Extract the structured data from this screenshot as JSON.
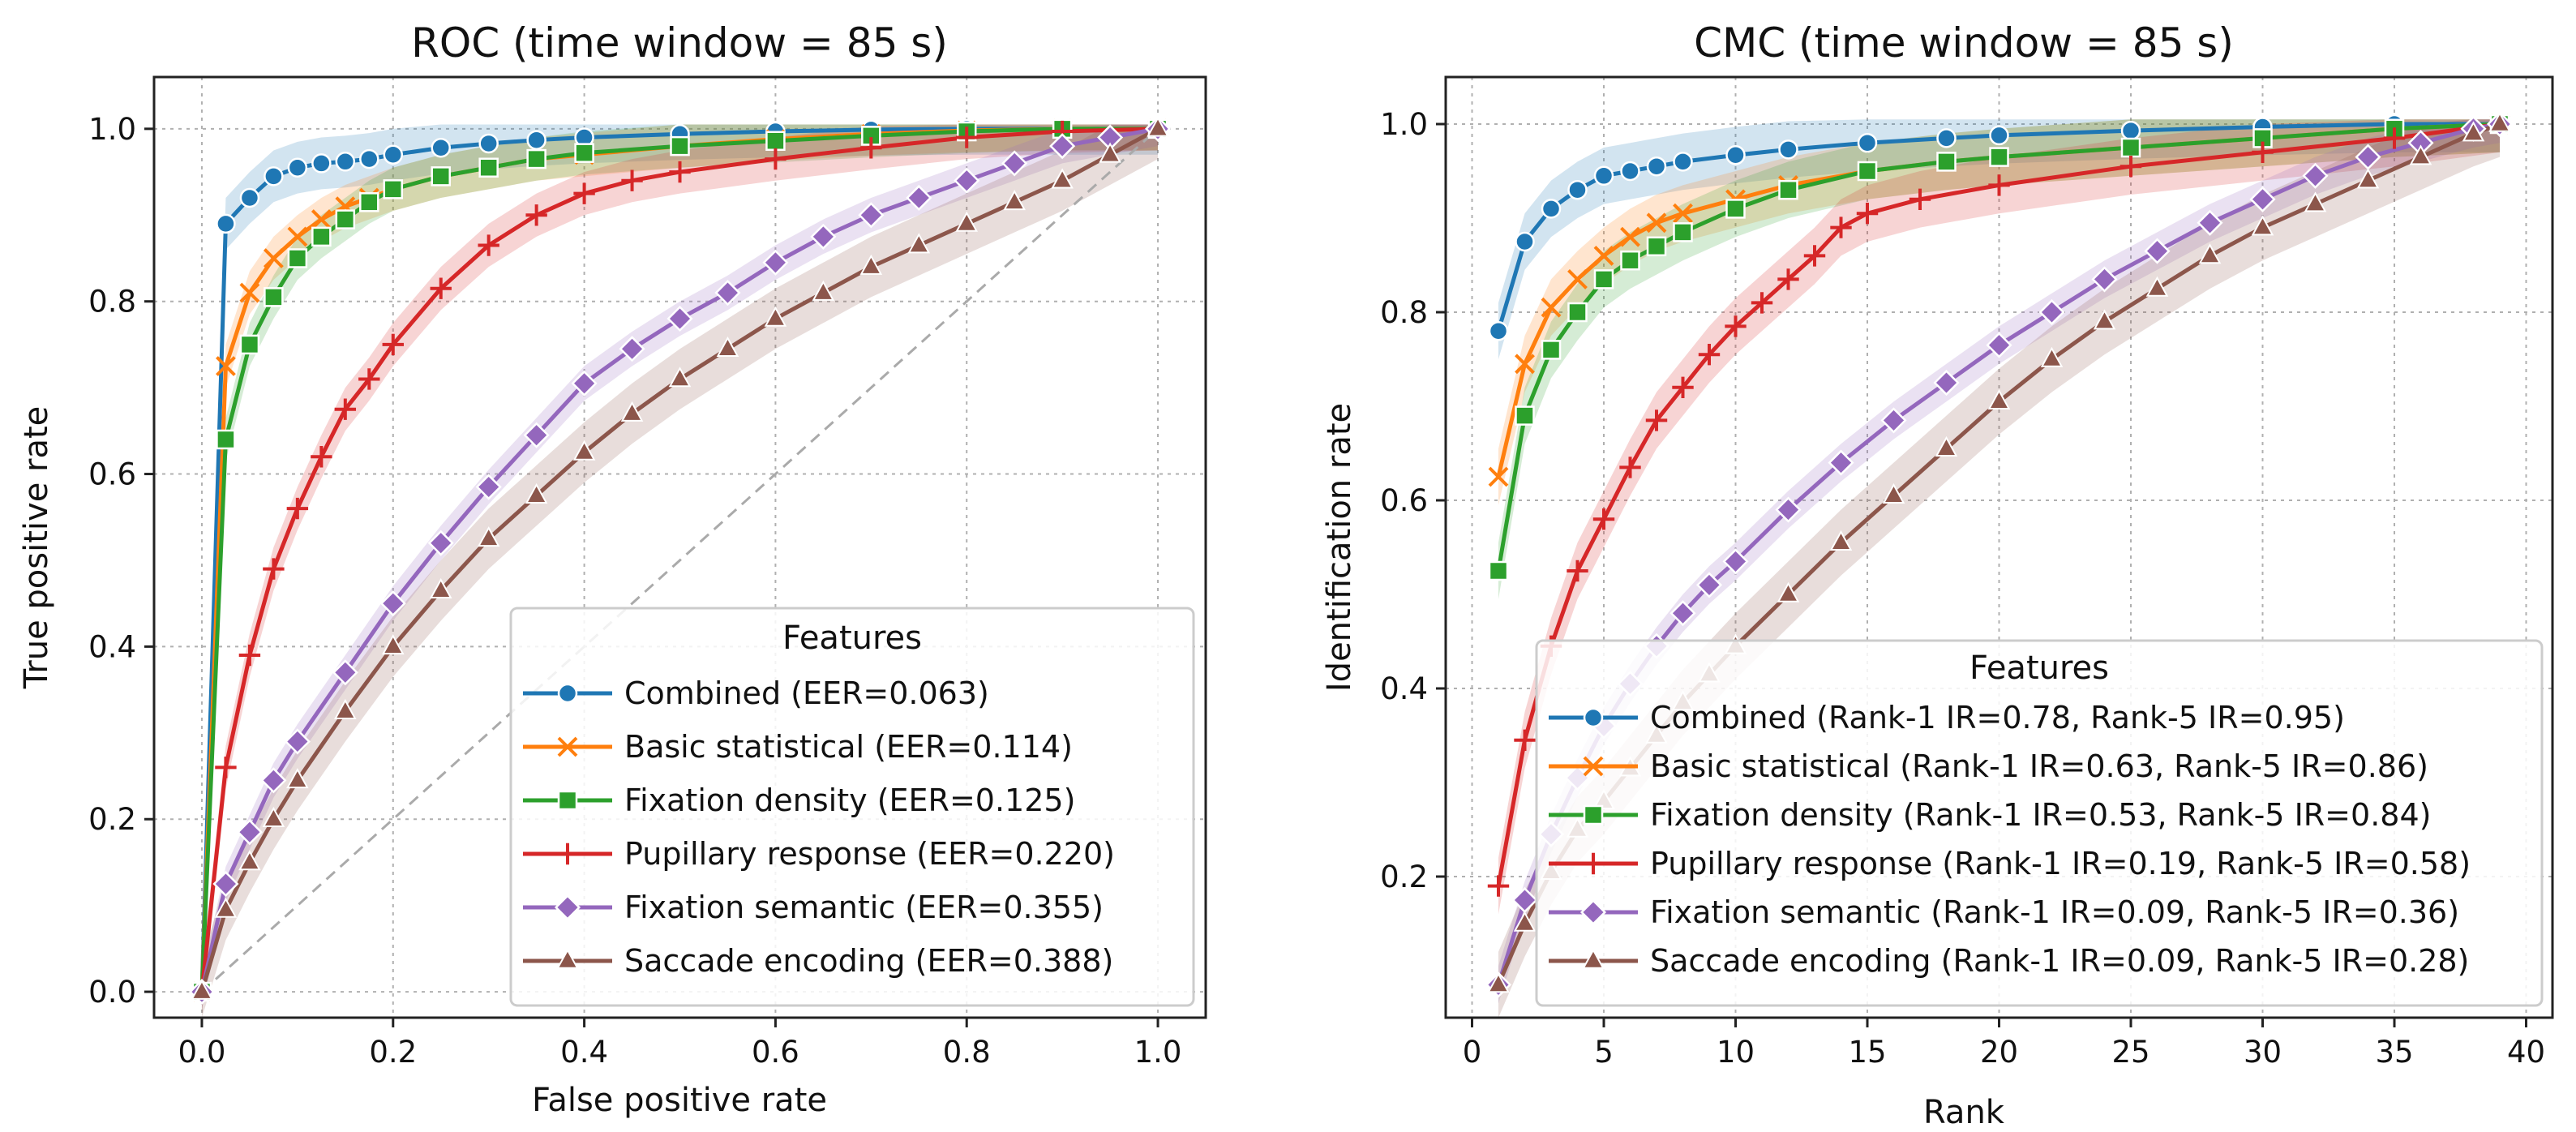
{
  "chart_data": [
    {
      "type": "line",
      "title": "ROC (time window = 85 s)",
      "xlabel": "False positive rate",
      "ylabel": "True positive rate",
      "xlim": [
        -0.05,
        1.05
      ],
      "ylim": [
        -0.03,
        1.06
      ],
      "xticks": [
        "0.0",
        "0.2",
        "0.4",
        "0.6",
        "0.8",
        "1.0"
      ],
      "yticks": [
        "0.0",
        "0.2",
        "0.4",
        "0.6",
        "0.8",
        "1.0"
      ],
      "grid": true,
      "diagonal": true,
      "legend_title": "Features",
      "legend_position": "lower-right",
      "series": [
        {
          "name": "Combined (EER=0.063)",
          "color": "#1f77b4",
          "marker": "circle",
          "x": [
            0,
            0.025,
            0.05,
            0.075,
            0.1,
            0.125,
            0.15,
            0.175,
            0.2,
            0.25,
            0.3,
            0.35,
            0.4,
            0.5,
            0.6,
            0.7,
            0.8,
            0.9,
            1.0
          ],
          "y": [
            0,
            0.89,
            0.92,
            0.945,
            0.955,
            0.96,
            0.962,
            0.965,
            0.97,
            0.978,
            0.983,
            0.987,
            0.99,
            0.994,
            0.997,
            0.999,
            1.0,
            1.0,
            1.0
          ],
          "band": 0.03
        },
        {
          "name": "Basic statistical (EER=0.114)",
          "color": "#ff7f0e",
          "marker": "x",
          "x": [
            0,
            0.025,
            0.05,
            0.075,
            0.1,
            0.125,
            0.15,
            0.175,
            0.2,
            0.25,
            0.3,
            0.35,
            0.4,
            0.5,
            0.6,
            0.7,
            0.8,
            0.9,
            1.0
          ],
          "y": [
            0,
            0.725,
            0.81,
            0.85,
            0.875,
            0.895,
            0.91,
            0.92,
            0.93,
            0.945,
            0.955,
            0.965,
            0.97,
            0.98,
            0.988,
            0.994,
            0.998,
            1.0,
            1.0
          ],
          "band": 0.025
        },
        {
          "name": "Fixation density (EER=0.125)",
          "color": "#2ca02c",
          "marker": "square",
          "x": [
            0,
            0.025,
            0.05,
            0.075,
            0.1,
            0.125,
            0.15,
            0.175,
            0.2,
            0.25,
            0.3,
            0.35,
            0.4,
            0.5,
            0.6,
            0.7,
            0.8,
            0.9,
            1.0
          ],
          "y": [
            0,
            0.64,
            0.75,
            0.805,
            0.85,
            0.875,
            0.895,
            0.915,
            0.93,
            0.945,
            0.955,
            0.965,
            0.972,
            0.98,
            0.986,
            0.992,
            0.997,
            1.0,
            1.0
          ],
          "band": 0.025
        },
        {
          "name": "Pupillary response (EER=0.220)",
          "color": "#d62728",
          "marker": "plus",
          "x": [
            0,
            0.025,
            0.05,
            0.075,
            0.1,
            0.125,
            0.15,
            0.175,
            0.2,
            0.25,
            0.3,
            0.35,
            0.4,
            0.45,
            0.5,
            0.6,
            0.7,
            0.8,
            0.9,
            1.0
          ],
          "y": [
            0,
            0.26,
            0.39,
            0.49,
            0.56,
            0.62,
            0.675,
            0.71,
            0.75,
            0.815,
            0.865,
            0.9,
            0.925,
            0.94,
            0.95,
            0.965,
            0.978,
            0.99,
            0.997,
            1.0
          ],
          "band": 0.025
        },
        {
          "name": "Fixation semantic (EER=0.355)",
          "color": "#9467bd",
          "marker": "diamond",
          "x": [
            0,
            0.025,
            0.05,
            0.075,
            0.1,
            0.15,
            0.2,
            0.25,
            0.3,
            0.35,
            0.4,
            0.45,
            0.5,
            0.55,
            0.6,
            0.65,
            0.7,
            0.75,
            0.8,
            0.85,
            0.9,
            0.95,
            1.0
          ],
          "y": [
            0,
            0.125,
            0.185,
            0.245,
            0.29,
            0.37,
            0.45,
            0.52,
            0.585,
            0.645,
            0.705,
            0.745,
            0.78,
            0.81,
            0.845,
            0.875,
            0.9,
            0.92,
            0.94,
            0.96,
            0.98,
            0.99,
            1.0
          ],
          "band": 0.02
        },
        {
          "name": "Saccade encoding (EER=0.388)",
          "color": "#8c564b",
          "marker": "triangle",
          "x": [
            0,
            0.025,
            0.05,
            0.075,
            0.1,
            0.15,
            0.2,
            0.25,
            0.3,
            0.35,
            0.4,
            0.45,
            0.5,
            0.55,
            0.6,
            0.65,
            0.7,
            0.75,
            0.8,
            0.85,
            0.9,
            0.95,
            1.0
          ],
          "y": [
            0,
            0.095,
            0.15,
            0.2,
            0.245,
            0.325,
            0.4,
            0.465,
            0.525,
            0.575,
            0.625,
            0.67,
            0.71,
            0.745,
            0.78,
            0.81,
            0.84,
            0.865,
            0.89,
            0.915,
            0.94,
            0.97,
            1.0
          ],
          "band": 0.035
        }
      ]
    },
    {
      "type": "line",
      "title": "CMC (time window = 85 s)",
      "xlabel": "Rank",
      "ylabel": "Identification rate",
      "xlim": [
        -1,
        41
      ],
      "ylim": [
        0.05,
        1.05
      ],
      "xticks": [
        "0",
        "5",
        "10",
        "15",
        "20",
        "25",
        "30",
        "35",
        "40"
      ],
      "yticks": [
        "0.2",
        "0.4",
        "0.6",
        "0.8",
        "1.0"
      ],
      "grid": true,
      "diagonal": false,
      "legend_title": "Features",
      "legend_position": "lower-right",
      "series": [
        {
          "name": "Combined (Rank-1 IR=0.78, Rank-5 IR=0.95)",
          "color": "#1f77b4",
          "marker": "circle",
          "x": [
            1,
            2,
            3,
            4,
            5,
            6,
            7,
            8,
            10,
            12,
            15,
            18,
            20,
            25,
            30,
            35,
            39
          ],
          "y": [
            0.78,
            0.875,
            0.91,
            0.93,
            0.945,
            0.95,
            0.955,
            0.96,
            0.967,
            0.973,
            0.98,
            0.985,
            0.988,
            0.993,
            0.997,
            1.0,
            1.0
          ],
          "band": 0.03
        },
        {
          "name": "Basic statistical (Rank-1 IR=0.63, Rank-5 IR=0.86)",
          "color": "#ff7f0e",
          "marker": "x",
          "x": [
            1,
            2,
            3,
            4,
            5,
            6,
            7,
            8,
            10,
            12,
            15,
            18,
            20,
            25,
            30,
            35,
            39
          ],
          "y": [
            0.625,
            0.745,
            0.805,
            0.835,
            0.86,
            0.88,
            0.895,
            0.905,
            0.92,
            0.935,
            0.95,
            0.96,
            0.965,
            0.975,
            0.985,
            0.995,
            1.0
          ],
          "band": 0.03
        },
        {
          "name": "Fixation density (Rank-1 IR=0.53, Rank-5 IR=0.84)",
          "color": "#2ca02c",
          "marker": "square",
          "x": [
            1,
            2,
            3,
            4,
            5,
            6,
            7,
            8,
            10,
            12,
            15,
            18,
            20,
            25,
            30,
            35,
            39
          ],
          "y": [
            0.525,
            0.69,
            0.76,
            0.8,
            0.835,
            0.855,
            0.87,
            0.885,
            0.91,
            0.93,
            0.95,
            0.96,
            0.965,
            0.975,
            0.985,
            0.995,
            1.0
          ],
          "band": 0.03
        },
        {
          "name": "Pupillary response (Rank-1 IR=0.19, Rank-5 IR=0.58)",
          "color": "#d62728",
          "marker": "plus",
          "x": [
            1,
            2,
            3,
            4,
            5,
            6,
            7,
            8,
            9,
            10,
            11,
            12,
            13,
            14,
            15,
            17,
            20,
            25,
            30,
            35,
            39
          ],
          "y": [
            0.19,
            0.345,
            0.445,
            0.525,
            0.58,
            0.635,
            0.685,
            0.72,
            0.755,
            0.785,
            0.81,
            0.835,
            0.86,
            0.89,
            0.905,
            0.92,
            0.935,
            0.955,
            0.97,
            0.985,
            1.0
          ],
          "band": 0.03
        },
        {
          "name": "Fixation semantic (Rank-1 IR=0.09, Rank-5 IR=0.36)",
          "color": "#9467bd",
          "marker": "diamond",
          "x": [
            1,
            2,
            3,
            4,
            5,
            6,
            7,
            8,
            9,
            10,
            12,
            14,
            16,
            18,
            20,
            22,
            24,
            26,
            28,
            30,
            32,
            34,
            36,
            38,
            39
          ],
          "y": [
            0.085,
            0.175,
            0.245,
            0.305,
            0.36,
            0.405,
            0.445,
            0.48,
            0.51,
            0.535,
            0.59,
            0.64,
            0.685,
            0.725,
            0.765,
            0.8,
            0.835,
            0.865,
            0.895,
            0.92,
            0.945,
            0.965,
            0.98,
            0.995,
            1.0
          ],
          "band": 0.02
        },
        {
          "name": "Saccade encoding (Rank-1 IR=0.09, Rank-5 IR=0.28)",
          "color": "#8c564b",
          "marker": "triangle",
          "x": [
            1,
            2,
            3,
            4,
            5,
            6,
            7,
            8,
            9,
            10,
            12,
            14,
            16,
            18,
            20,
            22,
            24,
            26,
            28,
            30,
            32,
            34,
            36,
            38,
            39
          ],
          "y": [
            0.085,
            0.15,
            0.205,
            0.25,
            0.28,
            0.315,
            0.35,
            0.385,
            0.415,
            0.445,
            0.5,
            0.555,
            0.605,
            0.655,
            0.705,
            0.75,
            0.79,
            0.825,
            0.86,
            0.89,
            0.915,
            0.94,
            0.965,
            0.99,
            1.0
          ],
          "band": 0.035
        }
      ]
    }
  ]
}
